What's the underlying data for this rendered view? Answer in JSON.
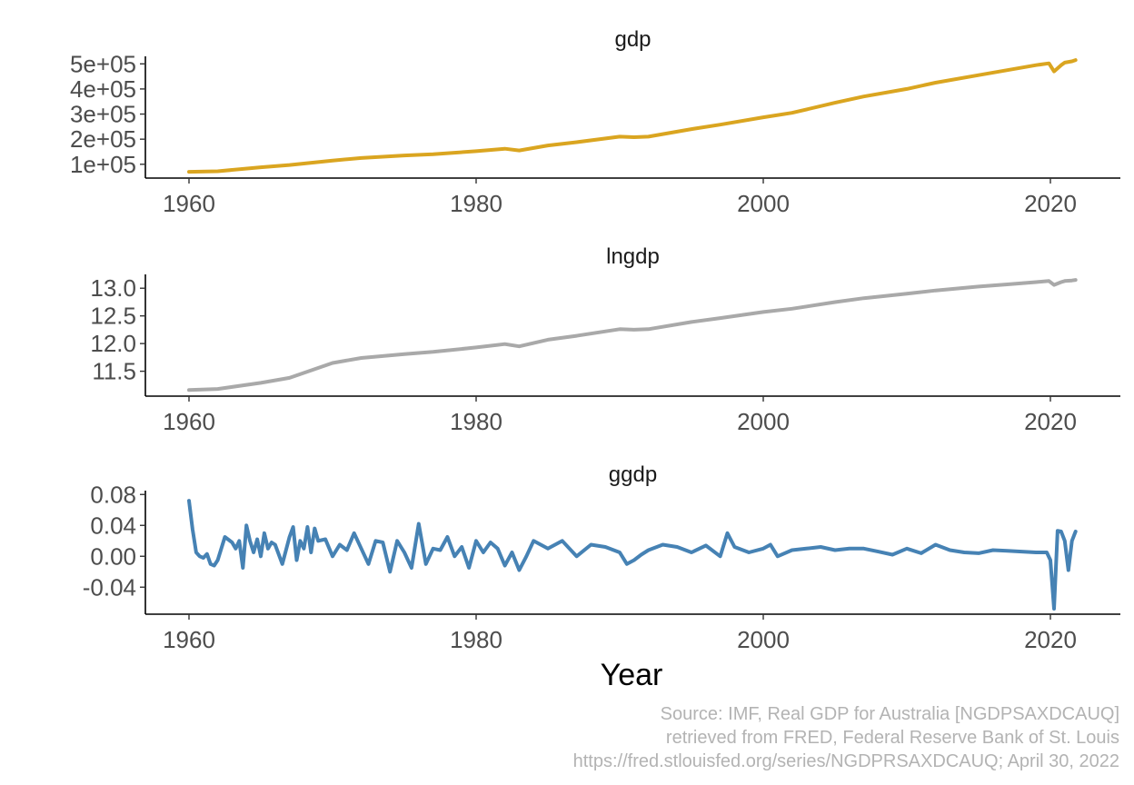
{
  "chart_data": {
    "type": "line",
    "layout": "facets stacked vertically, shared x axis",
    "xlabel": "Year",
    "x_ticks": [
      1960,
      1980,
      2000,
      2020
    ],
    "xlim": [
      1957,
      2025
    ],
    "caption": [
      "Source: IMF, Real GDP for Australia [NGDPSAXDCAUQ]",
      "retrieved from FRED, Federal Reserve Bank of St. Louis",
      "https://fred.stlouisfed.org/series/NGDPRSAXDCAUQ; April 30, 2022"
    ],
    "grid": false,
    "legend": "none",
    "facets": [
      {
        "title": "gdp",
        "color": "#DAA520",
        "ylim": [
          45000,
          530000
        ],
        "y_ticks": [
          100000,
          200000,
          300000,
          400000,
          500000
        ],
        "y_tick_labels": [
          "1e+05",
          "2e+05",
          "3e+05",
          "4e+05",
          "5e+05"
        ],
        "x": [
          1960,
          1962,
          1965,
          1967,
          1970,
          1972,
          1975,
          1977,
          1980,
          1982,
          1983,
          1985,
          1987,
          1990,
          1991,
          1992,
          1995,
          1997,
          2000,
          2002,
          2005,
          2007,
          2010,
          2012,
          2015,
          2017,
          2019,
          2019.9,
          2020.25,
          2020.75,
          2021,
          2021.5,
          2021.75
        ],
        "values": [
          70000,
          72000,
          88000,
          97000,
          115000,
          125000,
          135000,
          140000,
          152000,
          162000,
          155000,
          175000,
          188000,
          210000,
          208000,
          210000,
          240000,
          258000,
          287000,
          305000,
          345000,
          370000,
          400000,
          425000,
          455000,
          475000,
          495000,
          502000,
          470000,
          495000,
          505000,
          510000,
          515000
        ]
      },
      {
        "title": "lngdp",
        "color": "#A9A9A9",
        "ylim": [
          11.05,
          13.25
        ],
        "y_ticks": [
          11.5,
          12.0,
          12.5,
          13.0
        ],
        "y_tick_labels": [
          "11.5",
          "12.0",
          "12.5",
          "13.0"
        ],
        "x": [
          1960,
          1962,
          1965,
          1967,
          1970,
          1972,
          1975,
          1977,
          1980,
          1982,
          1983,
          1985,
          1987,
          1990,
          1991,
          1992,
          1995,
          1997,
          2000,
          2002,
          2005,
          2007,
          2010,
          2012,
          2015,
          2017,
          2019,
          2019.9,
          2020.25,
          2020.75,
          2021,
          2021.5,
          2021.75
        ],
        "values": [
          11.16,
          11.18,
          11.29,
          11.38,
          11.65,
          11.74,
          11.81,
          11.85,
          11.93,
          11.99,
          11.95,
          12.07,
          12.14,
          12.26,
          12.25,
          12.26,
          12.39,
          12.46,
          12.57,
          12.63,
          12.75,
          12.82,
          12.9,
          12.96,
          13.03,
          13.07,
          13.11,
          13.13,
          13.06,
          13.11,
          13.13,
          13.14,
          13.15
        ]
      },
      {
        "title": "ggdp",
        "color": "#4682B4",
        "ylim": [
          -0.075,
          0.085
        ],
        "y_ticks": [
          -0.04,
          0.0,
          0.04,
          0.08
        ],
        "y_tick_labels": [
          "-0.04",
          "0.00",
          "0.04",
          "0.08"
        ],
        "x": [
          1960,
          1960.25,
          1960.5,
          1960.75,
          1961,
          1961.25,
          1961.5,
          1961.75,
          1962,
          1962.5,
          1963,
          1963.25,
          1963.5,
          1963.75,
          1964,
          1964.25,
          1964.5,
          1964.75,
          1965,
          1965.25,
          1965.5,
          1965.75,
          1966,
          1966.5,
          1967,
          1967.25,
          1967.5,
          1967.75,
          1968,
          1968.25,
          1968.5,
          1968.75,
          1969,
          1969.5,
          1970,
          1970.5,
          1971,
          1971.5,
          1972,
          1972.5,
          1973,
          1973.5,
          1974,
          1974.5,
          1975,
          1975.5,
          1976,
          1976.5,
          1977,
          1977.5,
          1978,
          1978.5,
          1979,
          1979.5,
          1980,
          1980.5,
          1981,
          1981.5,
          1982,
          1982.5,
          1983,
          1983.5,
          1984,
          1985,
          1986,
          1987,
          1988,
          1989,
          1990,
          1990.5,
          1991,
          1991.5,
          1992,
          1993,
          1994,
          1995,
          1996,
          1997,
          1997.5,
          1998,
          1999,
          2000,
          2000.5,
          2001,
          2002,
          2003,
          2004,
          2005,
          2006,
          2007,
          2008,
          2009,
          2010,
          2011,
          2012,
          2013,
          2014,
          2015,
          2016,
          2017,
          2018,
          2019,
          2019.75,
          2020,
          2020.25,
          2020.5,
          2020.75,
          2021,
          2021.25,
          2021.5,
          2021.75
        ],
        "values": [
          0.072,
          0.035,
          0.005,
          0.0,
          -0.002,
          0.003,
          -0.01,
          -0.012,
          -0.005,
          0.025,
          0.018,
          0.01,
          0.02,
          -0.015,
          0.04,
          0.02,
          0.005,
          0.022,
          0.0,
          0.03,
          0.01,
          0.018,
          0.015,
          -0.01,
          0.025,
          0.038,
          -0.005,
          0.02,
          0.01,
          0.038,
          0.005,
          0.036,
          0.02,
          0.022,
          0.0,
          0.015,
          0.008,
          0.03,
          0.01,
          -0.01,
          0.02,
          0.018,
          -0.02,
          0.02,
          0.005,
          -0.015,
          0.042,
          -0.01,
          0.01,
          0.008,
          0.025,
          0.0,
          0.012,
          -0.015,
          0.02,
          0.005,
          0.018,
          0.01,
          -0.012,
          0.005,
          -0.018,
          0.0,
          0.02,
          0.01,
          0.02,
          0.0,
          0.015,
          0.012,
          0.005,
          -0.01,
          -0.005,
          0.002,
          0.008,
          0.015,
          0.012,
          0.005,
          0.014,
          0.0,
          0.03,
          0.012,
          0.005,
          0.01,
          0.015,
          0.0,
          0.008,
          0.01,
          0.012,
          0.008,
          0.01,
          0.01,
          0.006,
          0.002,
          0.01,
          0.004,
          0.015,
          0.008,
          0.005,
          0.004,
          0.008,
          0.007,
          0.006,
          0.005,
          0.005,
          -0.005,
          -0.068,
          0.033,
          0.032,
          0.02,
          -0.018,
          0.02,
          0.032
        ]
      }
    ]
  }
}
